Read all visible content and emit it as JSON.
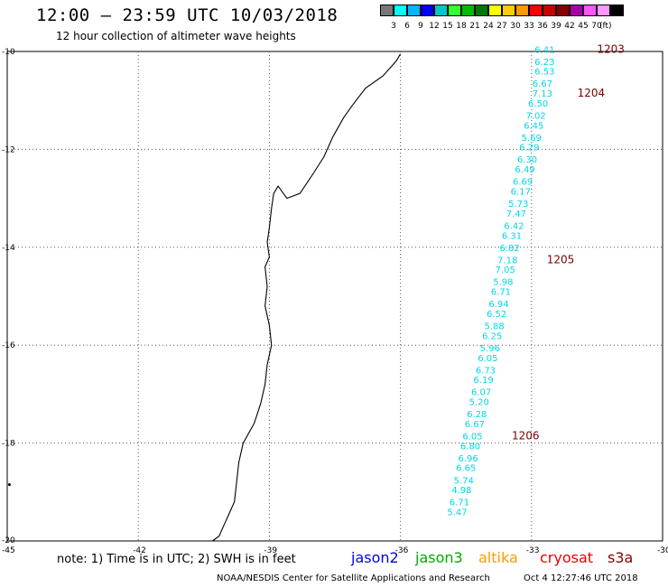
{
  "header": {
    "title": "12:00 – 23:59 UTC 10/03/2018",
    "subtitle": "12 hour collection of altimeter wave heights"
  },
  "color_scale": {
    "unit": "(ft)",
    "swatches": [
      {
        "color": "#777777",
        "label": ""
      },
      {
        "color": "#00ffff",
        "label": "3"
      },
      {
        "color": "#00b7ff",
        "label": "6"
      },
      {
        "color": "#0000ff",
        "label": "9"
      },
      {
        "color": "#00c8c8",
        "label": "12"
      },
      {
        "color": "#33ff33",
        "label": "15"
      },
      {
        "color": "#00bb00",
        "label": "18"
      },
      {
        "color": "#007700",
        "label": "21"
      },
      {
        "color": "#ffff00",
        "label": "24"
      },
      {
        "color": "#ffcc00",
        "label": "27"
      },
      {
        "color": "#ff9900",
        "label": "30"
      },
      {
        "color": "#ff0000",
        "label": "33"
      },
      {
        "color": "#cc0000",
        "label": "36"
      },
      {
        "color": "#880000",
        "label": "39"
      },
      {
        "color": "#aa00aa",
        "label": "42"
      },
      {
        "color": "#ff55ff",
        "label": "45"
      },
      {
        "color": "#ff99ff",
        "label": "70"
      },
      {
        "color": "#000000",
        "label": ""
      }
    ]
  },
  "map": {
    "lon_ticks": [
      "-45",
      "-42",
      "-39",
      "-36",
      "-33",
      "-30"
    ],
    "lat_ticks": [
      "-10",
      "-12",
      "-14",
      "-16",
      "-18",
      "-20"
    ],
    "lon_range": [
      -45,
      -30
    ],
    "lat_range": [
      -10,
      -20
    ],
    "track_color": "#00d7e6",
    "time_label_color": "#7a0000",
    "coastline": [
      [
        -36.0,
        -10.05
      ],
      [
        -36.1,
        -10.2
      ],
      [
        -36.4,
        -10.5
      ],
      [
        -36.8,
        -10.75
      ],
      [
        -37.1,
        -11.1
      ],
      [
        -37.3,
        -11.35
      ],
      [
        -37.55,
        -11.75
      ],
      [
        -37.75,
        -12.15
      ],
      [
        -38.0,
        -12.5
      ],
      [
        -38.3,
        -12.9
      ],
      [
        -38.6,
        -13.0
      ],
      [
        -38.8,
        -12.75
      ],
      [
        -38.9,
        -12.9
      ],
      [
        -38.95,
        -13.2
      ],
      [
        -39.0,
        -13.6
      ],
      [
        -39.05,
        -13.9
      ],
      [
        -39.0,
        -14.2
      ],
      [
        -39.1,
        -14.4
      ],
      [
        -39.05,
        -14.8
      ],
      [
        -39.1,
        -15.2
      ],
      [
        -39.0,
        -15.6
      ],
      [
        -38.95,
        -16.0
      ],
      [
        -39.05,
        -16.4
      ],
      [
        -39.1,
        -16.8
      ],
      [
        -39.2,
        -17.2
      ],
      [
        -39.35,
        -17.6
      ],
      [
        -39.6,
        -18.0
      ],
      [
        -39.7,
        -18.4
      ],
      [
        -39.75,
        -18.8
      ],
      [
        -39.8,
        -19.2
      ],
      [
        -40.0,
        -19.6
      ],
      [
        -40.15,
        -19.9
      ],
      [
        -40.3,
        -20.0
      ]
    ],
    "island": [
      -44.95,
      -18.85
    ],
    "swh_track": [
      {
        "lon": -32.7,
        "lat": -9.95,
        "v": "6.41"
      },
      {
        "lon": -32.7,
        "lat": -10.2,
        "v": "6.23"
      },
      {
        "lon": -32.7,
        "lat": -10.4,
        "v": "6.53"
      },
      {
        "lon": -32.75,
        "lat": -10.65,
        "v": "6.67"
      },
      {
        "lon": -32.75,
        "lat": -10.85,
        "v": "7.13"
      },
      {
        "lon": -32.85,
        "lat": -11.05,
        "v": "6.50"
      },
      {
        "lon": -32.9,
        "lat": -11.3,
        "v": "7.02"
      },
      {
        "lon": -32.95,
        "lat": -11.5,
        "v": "6.45"
      },
      {
        "lon": -33.0,
        "lat": -11.75,
        "v": "5.69"
      },
      {
        "lon": -33.05,
        "lat": -11.95,
        "v": "6.29"
      },
      {
        "lon": -33.1,
        "lat": -12.2,
        "v": "6.30"
      },
      {
        "lon": -33.15,
        "lat": -12.4,
        "v": "6.49"
      },
      {
        "lon": -33.2,
        "lat": -12.65,
        "v": "6.69"
      },
      {
        "lon": -33.25,
        "lat": -12.85,
        "v": "6.17"
      },
      {
        "lon": -33.3,
        "lat": -13.1,
        "v": "5.73"
      },
      {
        "lon": -33.35,
        "lat": -13.3,
        "v": "7.47"
      },
      {
        "lon": -33.4,
        "lat": -13.55,
        "v": "6.42"
      },
      {
        "lon": -33.45,
        "lat": -13.75,
        "v": "6.31"
      },
      {
        "lon": -33.5,
        "lat": -14.0,
        "v": "6.82"
      },
      {
        "lon": -33.55,
        "lat": -14.25,
        "v": "7.18"
      },
      {
        "lon": -33.6,
        "lat": -14.45,
        "v": "7.05"
      },
      {
        "lon": -33.65,
        "lat": -14.7,
        "v": "5.98"
      },
      {
        "lon": -33.7,
        "lat": -14.9,
        "v": "6.71"
      },
      {
        "lon": -33.75,
        "lat": -15.15,
        "v": "6.94"
      },
      {
        "lon": -33.8,
        "lat": -15.35,
        "v": "6.52"
      },
      {
        "lon": -33.85,
        "lat": -15.6,
        "v": "5.88"
      },
      {
        "lon": -33.9,
        "lat": -15.8,
        "v": "6.25"
      },
      {
        "lon": -33.95,
        "lat": -16.05,
        "v": "5.96"
      },
      {
        "lon": -34.0,
        "lat": -16.25,
        "v": "6.05"
      },
      {
        "lon": -34.05,
        "lat": -16.5,
        "v": "6.73"
      },
      {
        "lon": -34.1,
        "lat": -16.7,
        "v": "6.19"
      },
      {
        "lon": -34.15,
        "lat": -16.95,
        "v": "6.07"
      },
      {
        "lon": -34.2,
        "lat": -17.15,
        "v": "5.20"
      },
      {
        "lon": -34.25,
        "lat": -17.4,
        "v": "6.28"
      },
      {
        "lon": -34.3,
        "lat": -17.6,
        "v": "6.67"
      },
      {
        "lon": -34.35,
        "lat": -17.85,
        "v": "6.05"
      },
      {
        "lon": -34.4,
        "lat": -18.05,
        "v": "6.80"
      },
      {
        "lon": -34.45,
        "lat": -18.3,
        "v": "6.96"
      },
      {
        "lon": -34.5,
        "lat": -18.5,
        "v": "6.65"
      },
      {
        "lon": -34.55,
        "lat": -18.75,
        "v": "5.74"
      },
      {
        "lon": -34.6,
        "lat": -18.95,
        "v": "4.98"
      },
      {
        "lon": -34.65,
        "lat": -19.2,
        "v": "6.71"
      },
      {
        "lon": -34.7,
        "lat": -19.4,
        "v": "5.47"
      }
    ],
    "time_labels": [
      {
        "lon": -31.5,
        "lat": -9.95,
        "text": "1203"
      },
      {
        "lon": -31.95,
        "lat": -10.85,
        "text": "1204"
      },
      {
        "lon": -32.65,
        "lat": -14.25,
        "text": "1205"
      },
      {
        "lon": -33.45,
        "lat": -17.85,
        "text": "1206"
      }
    ]
  },
  "footer": {
    "note": "note:  1) Time is in UTC;  2) SWH is in feet",
    "satellites": [
      {
        "name": "jason2",
        "color": "#0000ee"
      },
      {
        "name": "jason3",
        "color": "#00aa00"
      },
      {
        "name": "altika",
        "color": "#ff9900"
      },
      {
        "name": "cryosat",
        "color": "#ee0000"
      },
      {
        "name": "s3a",
        "color": "#880000"
      }
    ],
    "credit": "NOAA/NESDIS Center for Satellite Applications and Research",
    "timestamp": "Oct  4 12:27:46 UTC 2018"
  }
}
